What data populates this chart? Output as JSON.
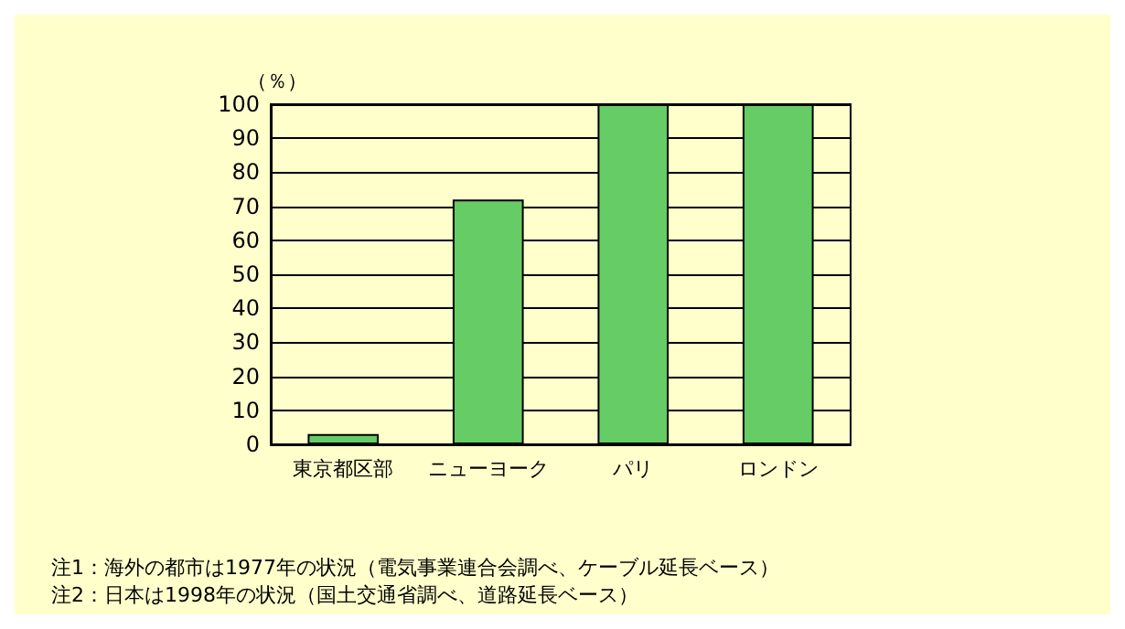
{
  "chart_data": {
    "type": "bar",
    "ylabel": "（％）",
    "categories": [
      "東京都区部",
      "ニューヨーク",
      "パリ",
      "ロンドン"
    ],
    "values": [
      3,
      72,
      100,
      100
    ],
    "color": "#66cc66",
    "ylim": [
      0,
      100
    ],
    "yticks": [
      0,
      10,
      20,
      30,
      40,
      50,
      60,
      70,
      80,
      90,
      100
    ],
    "grid": "y",
    "annotations": [
      "注1：海外の都市は1977年の状況（電気事業連合会調べ、ケーブル延長ベース）",
      "注2：日本は1998年の状況（国土交通省調べ、道路延長ベース）"
    ]
  }
}
